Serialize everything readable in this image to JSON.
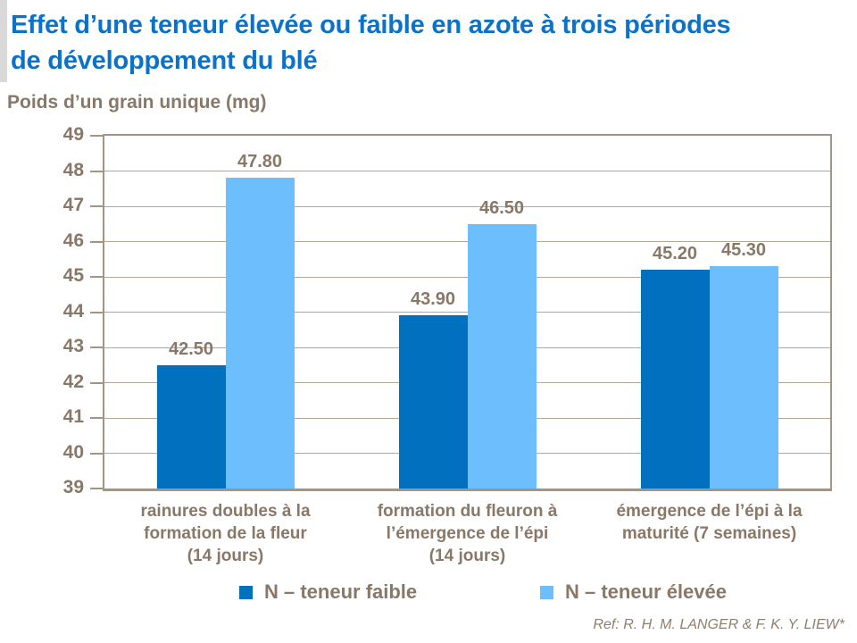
{
  "header": {
    "title": "Effet d’une teneur élevée ou faible en azote à trois périodes\nde développement du blé"
  },
  "chart_data": {
    "type": "bar",
    "title": "Effet d’une teneur élevée ou faible en azote à trois périodes de développement du blé",
    "ylabel": "Poids d’un grain unique (mg)",
    "xlabel": "",
    "ylim": [
      39,
      49
    ],
    "ytick_step": 1,
    "yticks": [
      49,
      48,
      47,
      46,
      45,
      44,
      43,
      42,
      41,
      40,
      39
    ],
    "grid": "horizontal",
    "legend_position": "bottom",
    "categories": [
      "rainures doubles à la\nformation de la fleur\n(14 jours)",
      "formation du fleuron à\nl’émergence de l’épi\n(14 jours)",
      "émergence de l’épi à la\nmaturité (7 semaines)"
    ],
    "series": [
      {
        "name": "N – teneur faible",
        "color": "#0070BF",
        "values": [
          42.5,
          43.9,
          45.2
        ],
        "value_labels": [
          "42.50",
          "43.90",
          "45.20"
        ]
      },
      {
        "name": "N – teneur élevée",
        "color": "#6CBEFC",
        "values": [
          47.8,
          46.5,
          45.3
        ],
        "value_labels": [
          "47.80",
          "46.50",
          "45.30"
        ]
      }
    ]
  },
  "footer": {
    "reference": "Ref: R. H. M. LANGER & F. K. Y. LIEW*"
  },
  "colors": {
    "title_blue": "#0A72C8",
    "series_low": "#0070BF",
    "series_high": "#6CBEFC",
    "axis_text": "#897767",
    "gridline": "#B5A795",
    "frame": "#A39484",
    "accent_bar": "#D9D9D9"
  }
}
